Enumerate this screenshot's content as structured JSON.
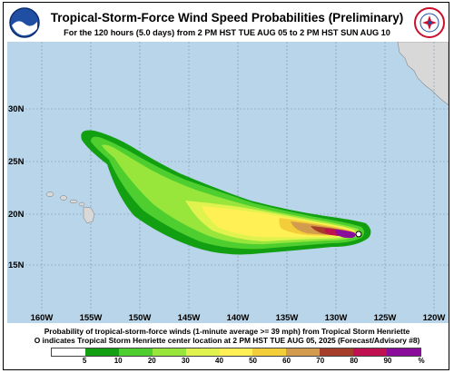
{
  "header": {
    "title": "Tropical-Storm-Force Wind Speed Probabilities (Preliminary)",
    "subtitle": "For the 120 hours (5.0 days) from 2 PM HST TUE AUG 05 to 2 PM HST SUN AUG 10"
  },
  "logos": {
    "left": "noaa-logo",
    "right": "national-weather-service-logo"
  },
  "map": {
    "lat_labels": [
      "30N",
      "25N",
      "20N",
      "15N"
    ],
    "lon_labels": [
      "160W",
      "155W",
      "150W",
      "145W",
      "140W",
      "135W",
      "130W",
      "125W",
      "120W"
    ],
    "ocean_color": "#b9d5e9",
    "land_color": "#d8d8d8"
  },
  "footer": {
    "line1": "Probability of tropical-storm-force winds (1-minute average >= 39 mph) from Tropical Storm Henriette",
    "line2": "O indicates Tropical Storm Henriette center location at 2 PM HST TUE AUG 05, 2025 (Forecast/Advisory #8)"
  },
  "legend": {
    "colors": [
      "#ffffff",
      "#12a012",
      "#4fcf2f",
      "#98e63c",
      "#dff24e",
      "#fff055",
      "#f3ce39",
      "#d39b4e",
      "#a63c2a",
      "#c01050",
      "#8a0c9a"
    ],
    "labels": [
      "5",
      "10",
      "20",
      "30",
      "40",
      "50",
      "60",
      "70",
      "80",
      "90",
      "%"
    ]
  }
}
